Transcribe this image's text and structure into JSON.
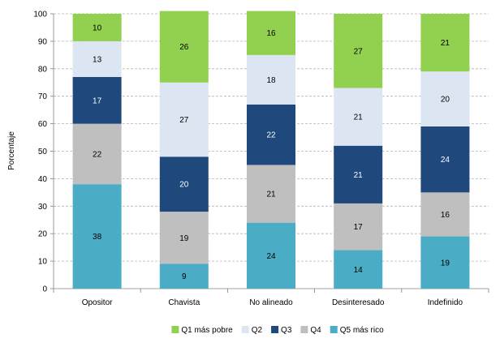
{
  "chart_data": {
    "type": "bar",
    "stacked": true,
    "title": "",
    "xlabel": "",
    "ylabel": "Porcentaje",
    "ylim": [
      0,
      100
    ],
    "yticks": [
      0,
      10,
      20,
      30,
      40,
      50,
      60,
      70,
      80,
      90,
      100
    ],
    "grid": true,
    "legend_position": "bottom",
    "categories": [
      "Opositor",
      "Chavista",
      "No alineado",
      "Desinteresado",
      "Indefinido"
    ],
    "series": [
      {
        "name": "Q5 más rico",
        "color": "#4bacc6",
        "label_color": "#000000",
        "values": [
          38,
          9,
          24,
          14,
          19
        ]
      },
      {
        "name": "Q4",
        "color": "#bfbfbf",
        "label_color": "#000000",
        "values": [
          22,
          19,
          21,
          17,
          16
        ]
      },
      {
        "name": "Q3",
        "color": "#1f497d",
        "label_color": "#ffffff",
        "values": [
          17,
          20,
          22,
          21,
          24
        ]
      },
      {
        "name": "Q2",
        "color": "#dce6f2",
        "label_color": "#000000",
        "values": [
          13,
          27,
          18,
          21,
          20
        ]
      },
      {
        "name": "Q1 más pobre",
        "color": "#92d050",
        "label_color": "#000000",
        "values": [
          10,
          26,
          16,
          27,
          21
        ]
      }
    ],
    "legend_order": [
      "Q1 más pobre",
      "Q2",
      "Q3",
      "Q4",
      "Q5 más rico"
    ]
  }
}
